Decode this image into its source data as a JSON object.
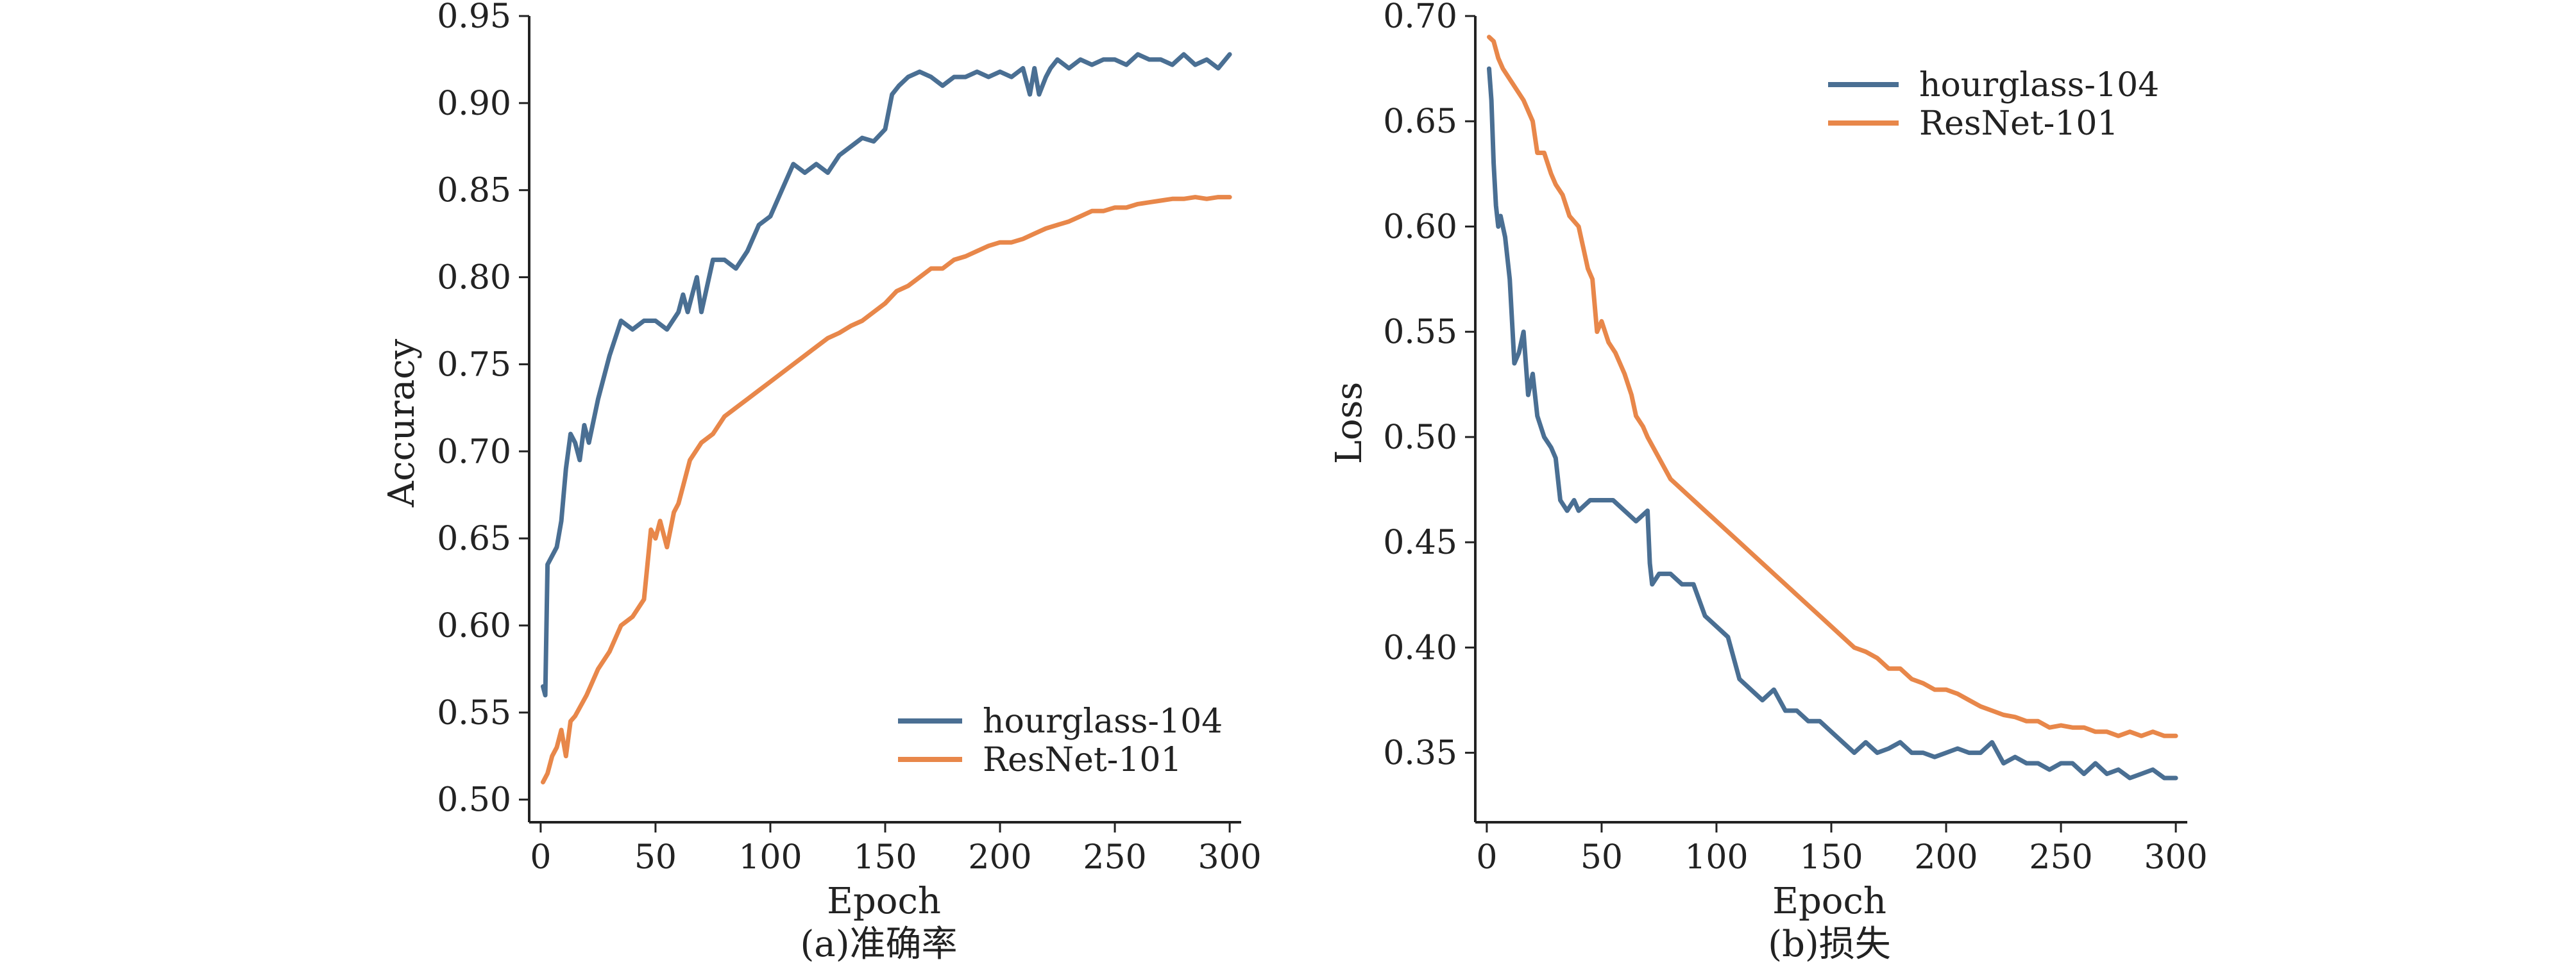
{
  "colors": {
    "hourglass": "#4a6f93",
    "resnet": "#e8874a",
    "axis": "#222222"
  },
  "chart_data": [
    {
      "type": "line",
      "caption": "(a)准确率",
      "xlabel": "Epoch",
      "ylabel": "Accuracy",
      "xlim": [
        -5,
        305
      ],
      "ylim": [
        0.487,
        0.95
      ],
      "xticks": [
        0,
        50,
        100,
        150,
        200,
        250,
        300
      ],
      "yticks": [
        0.5,
        0.55,
        0.6,
        0.65,
        0.7,
        0.75,
        0.8,
        0.85,
        0.9,
        0.95
      ],
      "grid": false,
      "legend_position": "bottom-right",
      "series": [
        {
          "name": "hourglass-104",
          "color": "#4a6f93",
          "x": [
            1,
            2,
            3,
            5,
            7,
            9,
            11,
            13,
            15,
            17,
            19,
            21,
            25,
            30,
            35,
            40,
            45,
            50,
            55,
            60,
            62,
            64,
            66,
            68,
            70,
            75,
            80,
            85,
            90,
            95,
            100,
            105,
            110,
            115,
            120,
            125,
            130,
            135,
            140,
            145,
            150,
            153,
            156,
            160,
            165,
            170,
            175,
            180,
            185,
            190,
            195,
            200,
            205,
            210,
            213,
            215,
            217,
            220,
            222,
            225,
            230,
            235,
            240,
            245,
            250,
            255,
            260,
            265,
            270,
            275,
            280,
            285,
            290,
            295,
            300
          ],
          "y": [
            0.565,
            0.56,
            0.635,
            0.64,
            0.645,
            0.66,
            0.69,
            0.71,
            0.705,
            0.695,
            0.715,
            0.705,
            0.73,
            0.755,
            0.775,
            0.77,
            0.775,
            0.775,
            0.77,
            0.78,
            0.79,
            0.78,
            0.79,
            0.8,
            0.78,
            0.81,
            0.81,
            0.805,
            0.815,
            0.83,
            0.835,
            0.85,
            0.865,
            0.86,
            0.865,
            0.86,
            0.87,
            0.875,
            0.88,
            0.878,
            0.885,
            0.905,
            0.91,
            0.915,
            0.918,
            0.915,
            0.91,
            0.915,
            0.915,
            0.918,
            0.915,
            0.918,
            0.915,
            0.92,
            0.905,
            0.92,
            0.905,
            0.915,
            0.92,
            0.925,
            0.92,
            0.925,
            0.922,
            0.925,
            0.925,
            0.922,
            0.928,
            0.925,
            0.925,
            0.922,
            0.928,
            0.922,
            0.925,
            0.92,
            0.928
          ]
        },
        {
          "name": "ResNet-101",
          "color": "#e8874a",
          "x": [
            1,
            3,
            5,
            7,
            9,
            11,
            13,
            15,
            20,
            25,
            30,
            35,
            40,
            45,
            48,
            50,
            52,
            55,
            58,
            60,
            62,
            65,
            70,
            75,
            80,
            85,
            90,
            95,
            100,
            105,
            110,
            115,
            120,
            125,
            130,
            135,
            140,
            145,
            150,
            155,
            160,
            165,
            170,
            175,
            180,
            185,
            190,
            195,
            200,
            205,
            210,
            215,
            220,
            225,
            230,
            235,
            240,
            245,
            250,
            255,
            260,
            265,
            270,
            275,
            280,
            285,
            290,
            295,
            300
          ],
          "y": [
            0.51,
            0.515,
            0.525,
            0.53,
            0.54,
            0.525,
            0.545,
            0.548,
            0.56,
            0.575,
            0.585,
            0.6,
            0.605,
            0.615,
            0.655,
            0.65,
            0.66,
            0.645,
            0.665,
            0.67,
            0.68,
            0.695,
            0.705,
            0.71,
            0.72,
            0.725,
            0.73,
            0.735,
            0.74,
            0.745,
            0.75,
            0.755,
            0.76,
            0.765,
            0.768,
            0.772,
            0.775,
            0.78,
            0.785,
            0.792,
            0.795,
            0.8,
            0.805,
            0.805,
            0.81,
            0.812,
            0.815,
            0.818,
            0.82,
            0.82,
            0.822,
            0.825,
            0.828,
            0.83,
            0.832,
            0.835,
            0.838,
            0.838,
            0.84,
            0.84,
            0.842,
            0.843,
            0.844,
            0.845,
            0.845,
            0.846,
            0.845,
            0.846,
            0.846
          ]
        }
      ]
    },
    {
      "type": "line",
      "caption": "(b)损失",
      "xlabel": "Epoch",
      "ylabel": "Loss",
      "xlim": [
        -5,
        305
      ],
      "ylim": [
        0.317,
        0.7
      ],
      "xticks": [
        0,
        50,
        100,
        150,
        200,
        250,
        300
      ],
      "yticks": [
        0.35,
        0.4,
        0.45,
        0.5,
        0.55,
        0.6,
        0.65,
        0.7
      ],
      "grid": false,
      "legend_position": "top-right",
      "series": [
        {
          "name": "hourglass-104",
          "color": "#4a6f93",
          "x": [
            1,
            2,
            3,
            4,
            5,
            6,
            8,
            10,
            12,
            14,
            16,
            18,
            20,
            22,
            25,
            28,
            30,
            32,
            35,
            38,
            40,
            45,
            50,
            55,
            60,
            65,
            70,
            71,
            72,
            75,
            80,
            85,
            90,
            95,
            100,
            105,
            110,
            115,
            120,
            125,
            130,
            135,
            140,
            145,
            150,
            155,
            160,
            165,
            170,
            175,
            180,
            185,
            190,
            195,
            200,
            205,
            210,
            215,
            220,
            225,
            230,
            235,
            240,
            245,
            250,
            255,
            260,
            265,
            270,
            275,
            280,
            285,
            290,
            295,
            300
          ],
          "y": [
            0.675,
            0.66,
            0.63,
            0.61,
            0.6,
            0.605,
            0.595,
            0.575,
            0.535,
            0.54,
            0.55,
            0.52,
            0.53,
            0.51,
            0.5,
            0.495,
            0.49,
            0.47,
            0.465,
            0.47,
            0.465,
            0.47,
            0.47,
            0.47,
            0.465,
            0.46,
            0.465,
            0.44,
            0.43,
            0.435,
            0.435,
            0.43,
            0.43,
            0.415,
            0.41,
            0.405,
            0.385,
            0.38,
            0.375,
            0.38,
            0.37,
            0.37,
            0.365,
            0.365,
            0.36,
            0.355,
            0.35,
            0.355,
            0.35,
            0.352,
            0.355,
            0.35,
            0.35,
            0.348,
            0.35,
            0.352,
            0.35,
            0.35,
            0.355,
            0.345,
            0.348,
            0.345,
            0.345,
            0.342,
            0.345,
            0.345,
            0.34,
            0.345,
            0.34,
            0.342,
            0.338,
            0.34,
            0.342,
            0.338,
            0.338
          ]
        },
        {
          "name": "ResNet-101",
          "color": "#e8874a",
          "x": [
            1,
            3,
            5,
            7,
            10,
            13,
            16,
            20,
            22,
            25,
            28,
            30,
            33,
            36,
            40,
            42,
            44,
            46,
            48,
            50,
            53,
            56,
            60,
            63,
            65,
            68,
            70,
            75,
            80,
            85,
            90,
            95,
            100,
            105,
            110,
            115,
            120,
            125,
            130,
            135,
            140,
            145,
            150,
            155,
            160,
            165,
            170,
            175,
            180,
            185,
            190,
            195,
            200,
            205,
            210,
            215,
            220,
            225,
            230,
            235,
            240,
            245,
            250,
            255,
            260,
            265,
            270,
            275,
            280,
            285,
            290,
            295,
            300
          ],
          "y": [
            0.69,
            0.688,
            0.68,
            0.675,
            0.67,
            0.665,
            0.66,
            0.65,
            0.635,
            0.635,
            0.625,
            0.62,
            0.615,
            0.605,
            0.6,
            0.59,
            0.58,
            0.575,
            0.55,
            0.555,
            0.545,
            0.54,
            0.53,
            0.52,
            0.51,
            0.505,
            0.5,
            0.49,
            0.48,
            0.475,
            0.47,
            0.465,
            0.46,
            0.455,
            0.45,
            0.445,
            0.44,
            0.435,
            0.43,
            0.425,
            0.42,
            0.415,
            0.41,
            0.405,
            0.4,
            0.398,
            0.395,
            0.39,
            0.39,
            0.385,
            0.383,
            0.38,
            0.38,
            0.378,
            0.375,
            0.372,
            0.37,
            0.368,
            0.367,
            0.365,
            0.365,
            0.362,
            0.363,
            0.362,
            0.362,
            0.36,
            0.36,
            0.358,
            0.36,
            0.358,
            0.36,
            0.358,
            0.358
          ]
        }
      ]
    }
  ]
}
